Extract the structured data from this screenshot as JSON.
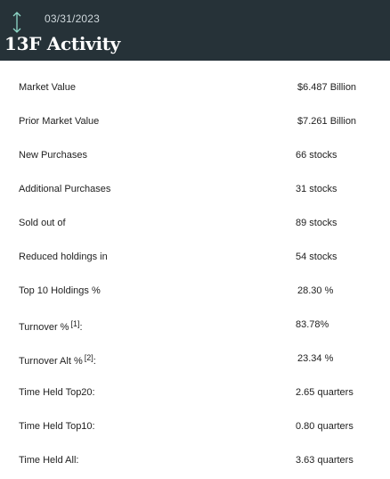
{
  "header": {
    "date": "03/31/2023",
    "title": "13F Activity",
    "icon": "vertical-arrows-icon",
    "icon_color": "#8fd9c8",
    "background": "#263238"
  },
  "rows": [
    {
      "label": "Market Value",
      "value": "$6.487 Billion"
    },
    {
      "label": "Prior Market Value",
      "value": "$7.261 Billion"
    },
    {
      "label": "New Purchases",
      "value": "66 stocks"
    },
    {
      "label": "Additional Purchases",
      "value": "31 stocks"
    },
    {
      "label": "Sold out of",
      "value": "89 stocks"
    },
    {
      "label": "Reduced holdings in",
      "value": "54 stocks"
    },
    {
      "label": "Top 10 Holdings %",
      "value": "28.30 %"
    },
    {
      "label": "Turnover %",
      "footnote": "[1]",
      "suffix": ":",
      "value": "83.78%"
    },
    {
      "label": "Turnover Alt %",
      "footnote": "[2]",
      "suffix": ":",
      "value": "23.34 %"
    },
    {
      "label": "Time Held Top20:",
      "value": "2.65 quarters"
    },
    {
      "label": "Time Held Top10:",
      "value": "0.80 quarters"
    },
    {
      "label": "Time Held All:",
      "value": "3.63 quarters"
    }
  ]
}
